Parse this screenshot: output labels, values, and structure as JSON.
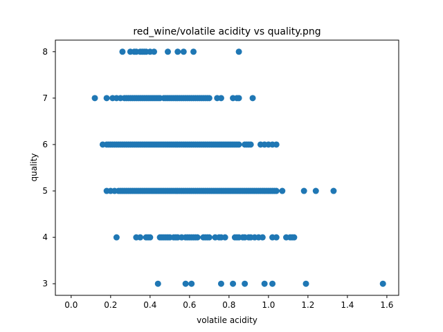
{
  "chart_data": {
    "type": "scatter",
    "title": "red_wine/volatile acidity vs quality.png",
    "xlabel": "volatile acidity",
    "ylabel": "quality",
    "xlim": [
      -0.08,
      1.66
    ],
    "ylim": [
      2.75,
      8.25
    ],
    "xticks": [
      0.0,
      0.2,
      0.4,
      0.6,
      0.8,
      1.0,
      1.2,
      1.4,
      1.6
    ],
    "xtick_labels": [
      "0.0",
      "0.2",
      "0.4",
      "0.6",
      "0.8",
      "1.0",
      "1.2",
      "1.4",
      "1.6"
    ],
    "yticks": [
      3,
      4,
      5,
      6,
      7,
      8
    ],
    "ytick_labels": [
      "3",
      "4",
      "5",
      "6",
      "7",
      "8"
    ],
    "grid": false,
    "marker_color": "#1f77b4",
    "series": [
      {
        "points": [
          [
            0.26,
            8
          ],
          [
            0.3,
            8
          ],
          [
            0.32,
            8
          ],
          [
            0.33,
            8
          ],
          [
            0.35,
            8
          ],
          [
            0.36,
            8
          ],
          [
            0.37,
            8
          ],
          [
            0.38,
            8
          ],
          [
            0.4,
            8
          ],
          [
            0.42,
            8
          ],
          [
            0.49,
            8
          ],
          [
            0.54,
            8
          ],
          [
            0.57,
            8
          ],
          [
            0.62,
            8
          ],
          [
            0.85,
            8
          ],
          [
            0.12,
            7
          ],
          [
            0.18,
            7
          ],
          [
            0.21,
            7
          ],
          [
            0.23,
            7
          ],
          [
            0.25,
            7
          ],
          [
            0.27,
            7
          ],
          [
            0.28,
            7
          ],
          [
            0.29,
            7
          ],
          [
            0.3,
            7
          ],
          [
            0.31,
            7
          ],
          [
            0.32,
            7
          ],
          [
            0.33,
            7
          ],
          [
            0.34,
            7
          ],
          [
            0.35,
            7
          ],
          [
            0.36,
            7
          ],
          [
            0.37,
            7
          ],
          [
            0.38,
            7
          ],
          [
            0.39,
            7
          ],
          [
            0.4,
            7
          ],
          [
            0.41,
            7
          ],
          [
            0.42,
            7
          ],
          [
            0.43,
            7
          ],
          [
            0.44,
            7
          ],
          [
            0.45,
            7
          ],
          [
            0.47,
            7
          ],
          [
            0.48,
            7
          ],
          [
            0.49,
            7
          ],
          [
            0.5,
            7
          ],
          [
            0.51,
            7
          ],
          [
            0.52,
            7
          ],
          [
            0.53,
            7
          ],
          [
            0.54,
            7
          ],
          [
            0.55,
            7
          ],
          [
            0.56,
            7
          ],
          [
            0.57,
            7
          ],
          [
            0.58,
            7
          ],
          [
            0.59,
            7
          ],
          [
            0.6,
            7
          ],
          [
            0.61,
            7
          ],
          [
            0.62,
            7
          ],
          [
            0.63,
            7
          ],
          [
            0.64,
            7
          ],
          [
            0.65,
            7
          ],
          [
            0.66,
            7
          ],
          [
            0.67,
            7
          ],
          [
            0.68,
            7
          ],
          [
            0.69,
            7
          ],
          [
            0.7,
            7
          ],
          [
            0.74,
            7
          ],
          [
            0.76,
            7
          ],
          [
            0.82,
            7
          ],
          [
            0.84,
            7
          ],
          [
            0.85,
            7
          ],
          [
            0.92,
            7
          ],
          [
            0.16,
            6
          ],
          [
            0.18,
            6
          ],
          [
            0.19,
            6
          ],
          [
            0.2,
            6
          ],
          [
            0.21,
            6
          ],
          [
            0.22,
            6
          ],
          [
            0.23,
            6
          ],
          [
            0.24,
            6
          ],
          [
            0.25,
            6
          ],
          [
            0.26,
            6
          ],
          [
            0.27,
            6
          ],
          [
            0.28,
            6
          ],
          [
            0.29,
            6
          ],
          [
            0.3,
            6
          ],
          [
            0.31,
            6
          ],
          [
            0.32,
            6
          ],
          [
            0.33,
            6
          ],
          [
            0.34,
            6
          ],
          [
            0.35,
            6
          ],
          [
            0.36,
            6
          ],
          [
            0.37,
            6
          ],
          [
            0.38,
            6
          ],
          [
            0.39,
            6
          ],
          [
            0.4,
            6
          ],
          [
            0.41,
            6
          ],
          [
            0.42,
            6
          ],
          [
            0.43,
            6
          ],
          [
            0.44,
            6
          ],
          [
            0.45,
            6
          ],
          [
            0.46,
            6
          ],
          [
            0.47,
            6
          ],
          [
            0.48,
            6
          ],
          [
            0.49,
            6
          ],
          [
            0.5,
            6
          ],
          [
            0.51,
            6
          ],
          [
            0.52,
            6
          ],
          [
            0.53,
            6
          ],
          [
            0.54,
            6
          ],
          [
            0.55,
            6
          ],
          [
            0.56,
            6
          ],
          [
            0.57,
            6
          ],
          [
            0.58,
            6
          ],
          [
            0.59,
            6
          ],
          [
            0.6,
            6
          ],
          [
            0.61,
            6
          ],
          [
            0.62,
            6
          ],
          [
            0.63,
            6
          ],
          [
            0.64,
            6
          ],
          [
            0.65,
            6
          ],
          [
            0.66,
            6
          ],
          [
            0.67,
            6
          ],
          [
            0.68,
            6
          ],
          [
            0.69,
            6
          ],
          [
            0.7,
            6
          ],
          [
            0.71,
            6
          ],
          [
            0.72,
            6
          ],
          [
            0.73,
            6
          ],
          [
            0.74,
            6
          ],
          [
            0.75,
            6
          ],
          [
            0.76,
            6
          ],
          [
            0.77,
            6
          ],
          [
            0.78,
            6
          ],
          [
            0.79,
            6
          ],
          [
            0.8,
            6
          ],
          [
            0.81,
            6
          ],
          [
            0.82,
            6
          ],
          [
            0.83,
            6
          ],
          [
            0.84,
            6
          ],
          [
            0.85,
            6
          ],
          [
            0.88,
            6
          ],
          [
            0.89,
            6
          ],
          [
            0.9,
            6
          ],
          [
            0.91,
            6
          ],
          [
            0.96,
            6
          ],
          [
            0.98,
            6
          ],
          [
            1.0,
            6
          ],
          [
            1.02,
            6
          ],
          [
            1.04,
            6
          ],
          [
            0.18,
            5
          ],
          [
            0.2,
            5
          ],
          [
            0.22,
            5
          ],
          [
            0.24,
            5
          ],
          [
            0.25,
            5
          ],
          [
            0.26,
            5
          ],
          [
            0.27,
            5
          ],
          [
            0.28,
            5
          ],
          [
            0.29,
            5
          ],
          [
            0.3,
            5
          ],
          [
            0.31,
            5
          ],
          [
            0.32,
            5
          ],
          [
            0.33,
            5
          ],
          [
            0.34,
            5
          ],
          [
            0.35,
            5
          ],
          [
            0.36,
            5
          ],
          [
            0.37,
            5
          ],
          [
            0.38,
            5
          ],
          [
            0.39,
            5
          ],
          [
            0.4,
            5
          ],
          [
            0.41,
            5
          ],
          [
            0.42,
            5
          ],
          [
            0.43,
            5
          ],
          [
            0.44,
            5
          ],
          [
            0.45,
            5
          ],
          [
            0.46,
            5
          ],
          [
            0.47,
            5
          ],
          [
            0.48,
            5
          ],
          [
            0.49,
            5
          ],
          [
            0.5,
            5
          ],
          [
            0.51,
            5
          ],
          [
            0.52,
            5
          ],
          [
            0.53,
            5
          ],
          [
            0.54,
            5
          ],
          [
            0.55,
            5
          ],
          [
            0.56,
            5
          ],
          [
            0.57,
            5
          ],
          [
            0.58,
            5
          ],
          [
            0.59,
            5
          ],
          [
            0.6,
            5
          ],
          [
            0.61,
            5
          ],
          [
            0.62,
            5
          ],
          [
            0.63,
            5
          ],
          [
            0.64,
            5
          ],
          [
            0.65,
            5
          ],
          [
            0.66,
            5
          ],
          [
            0.67,
            5
          ],
          [
            0.68,
            5
          ],
          [
            0.69,
            5
          ],
          [
            0.7,
            5
          ],
          [
            0.71,
            5
          ],
          [
            0.72,
            5
          ],
          [
            0.73,
            5
          ],
          [
            0.74,
            5
          ],
          [
            0.75,
            5
          ],
          [
            0.76,
            5
          ],
          [
            0.77,
            5
          ],
          [
            0.78,
            5
          ],
          [
            0.79,
            5
          ],
          [
            0.8,
            5
          ],
          [
            0.81,
            5
          ],
          [
            0.82,
            5
          ],
          [
            0.83,
            5
          ],
          [
            0.84,
            5
          ],
          [
            0.85,
            5
          ],
          [
            0.86,
            5
          ],
          [
            0.87,
            5
          ],
          [
            0.88,
            5
          ],
          [
            0.89,
            5
          ],
          [
            0.9,
            5
          ],
          [
            0.91,
            5
          ],
          [
            0.92,
            5
          ],
          [
            0.93,
            5
          ],
          [
            0.94,
            5
          ],
          [
            0.95,
            5
          ],
          [
            0.96,
            5
          ],
          [
            0.97,
            5
          ],
          [
            0.98,
            5
          ],
          [
            0.99,
            5
          ],
          [
            1.0,
            5
          ],
          [
            1.01,
            5
          ],
          [
            1.02,
            5
          ],
          [
            1.03,
            5
          ],
          [
            1.04,
            5
          ],
          [
            1.07,
            5
          ],
          [
            1.18,
            5
          ],
          [
            1.24,
            5
          ],
          [
            1.33,
            5
          ],
          [
            0.23,
            4
          ],
          [
            0.33,
            4
          ],
          [
            0.35,
            4
          ],
          [
            0.38,
            4
          ],
          [
            0.39,
            4
          ],
          [
            0.4,
            4
          ],
          [
            0.45,
            4
          ],
          [
            0.46,
            4
          ],
          [
            0.47,
            4
          ],
          [
            0.48,
            4
          ],
          [
            0.49,
            4
          ],
          [
            0.5,
            4
          ],
          [
            0.52,
            4
          ],
          [
            0.53,
            4
          ],
          [
            0.54,
            4
          ],
          [
            0.56,
            4
          ],
          [
            0.58,
            4
          ],
          [
            0.59,
            4
          ],
          [
            0.6,
            4
          ],
          [
            0.61,
            4
          ],
          [
            0.62,
            4
          ],
          [
            0.63,
            4
          ],
          [
            0.64,
            4
          ],
          [
            0.67,
            4
          ],
          [
            0.68,
            4
          ],
          [
            0.69,
            4
          ],
          [
            0.7,
            4
          ],
          [
            0.73,
            4
          ],
          [
            0.75,
            4
          ],
          [
            0.76,
            4
          ],
          [
            0.78,
            4
          ],
          [
            0.83,
            4
          ],
          [
            0.84,
            4
          ],
          [
            0.85,
            4
          ],
          [
            0.87,
            4
          ],
          [
            0.88,
            4
          ],
          [
            0.9,
            4
          ],
          [
            0.91,
            4
          ],
          [
            0.93,
            4
          ],
          [
            0.95,
            4
          ],
          [
            0.97,
            4
          ],
          [
            1.02,
            4
          ],
          [
            1.04,
            4
          ],
          [
            1.09,
            4
          ],
          [
            1.11,
            4
          ],
          [
            1.12,
            4
          ],
          [
            1.13,
            4
          ],
          [
            0.44,
            3
          ],
          [
            0.58,
            3
          ],
          [
            0.61,
            3
          ],
          [
            0.76,
            3
          ],
          [
            0.82,
            3
          ],
          [
            0.88,
            3
          ],
          [
            0.98,
            3
          ],
          [
            1.02,
            3
          ],
          [
            1.19,
            3
          ],
          [
            1.58,
            3
          ]
        ]
      }
    ]
  }
}
